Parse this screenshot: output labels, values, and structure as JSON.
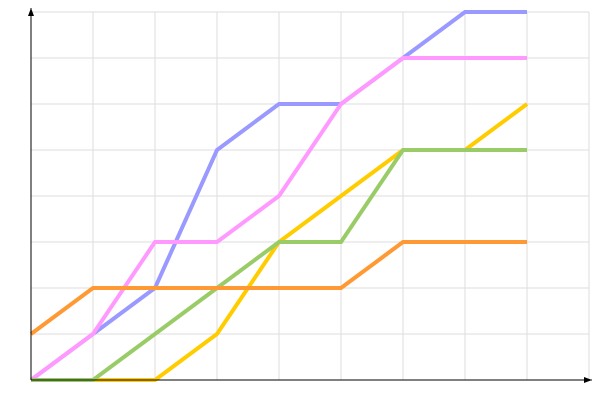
{
  "chart_data": {
    "type": "line",
    "title": "",
    "xlabel": "",
    "ylabel": "",
    "x": [
      0,
      1,
      2,
      3,
      4,
      5,
      6,
      7,
      8
    ],
    "xlim": [
      0,
      9
    ],
    "ylim": [
      0,
      8
    ],
    "grid": true,
    "series": [
      {
        "color": "#9999ff",
        "values": [
          0,
          1,
          2,
          5,
          6,
          6,
          7,
          8,
          8
        ]
      },
      {
        "color": "#ff99ff",
        "values": [
          0,
          1,
          3,
          3,
          4,
          6,
          7,
          7,
          7
        ]
      },
      {
        "color": "#ffcc00",
        "values": [
          0,
          0,
          0,
          1,
          3,
          4,
          5,
          5,
          6
        ]
      },
      {
        "color": "#99cc66",
        "values": [
          0,
          0,
          1,
          2,
          3,
          3,
          5,
          5,
          5
        ]
      },
      {
        "color": "#ff9933",
        "values": [
          1,
          2,
          2,
          2,
          2,
          2,
          3,
          3,
          3
        ]
      }
    ]
  }
}
